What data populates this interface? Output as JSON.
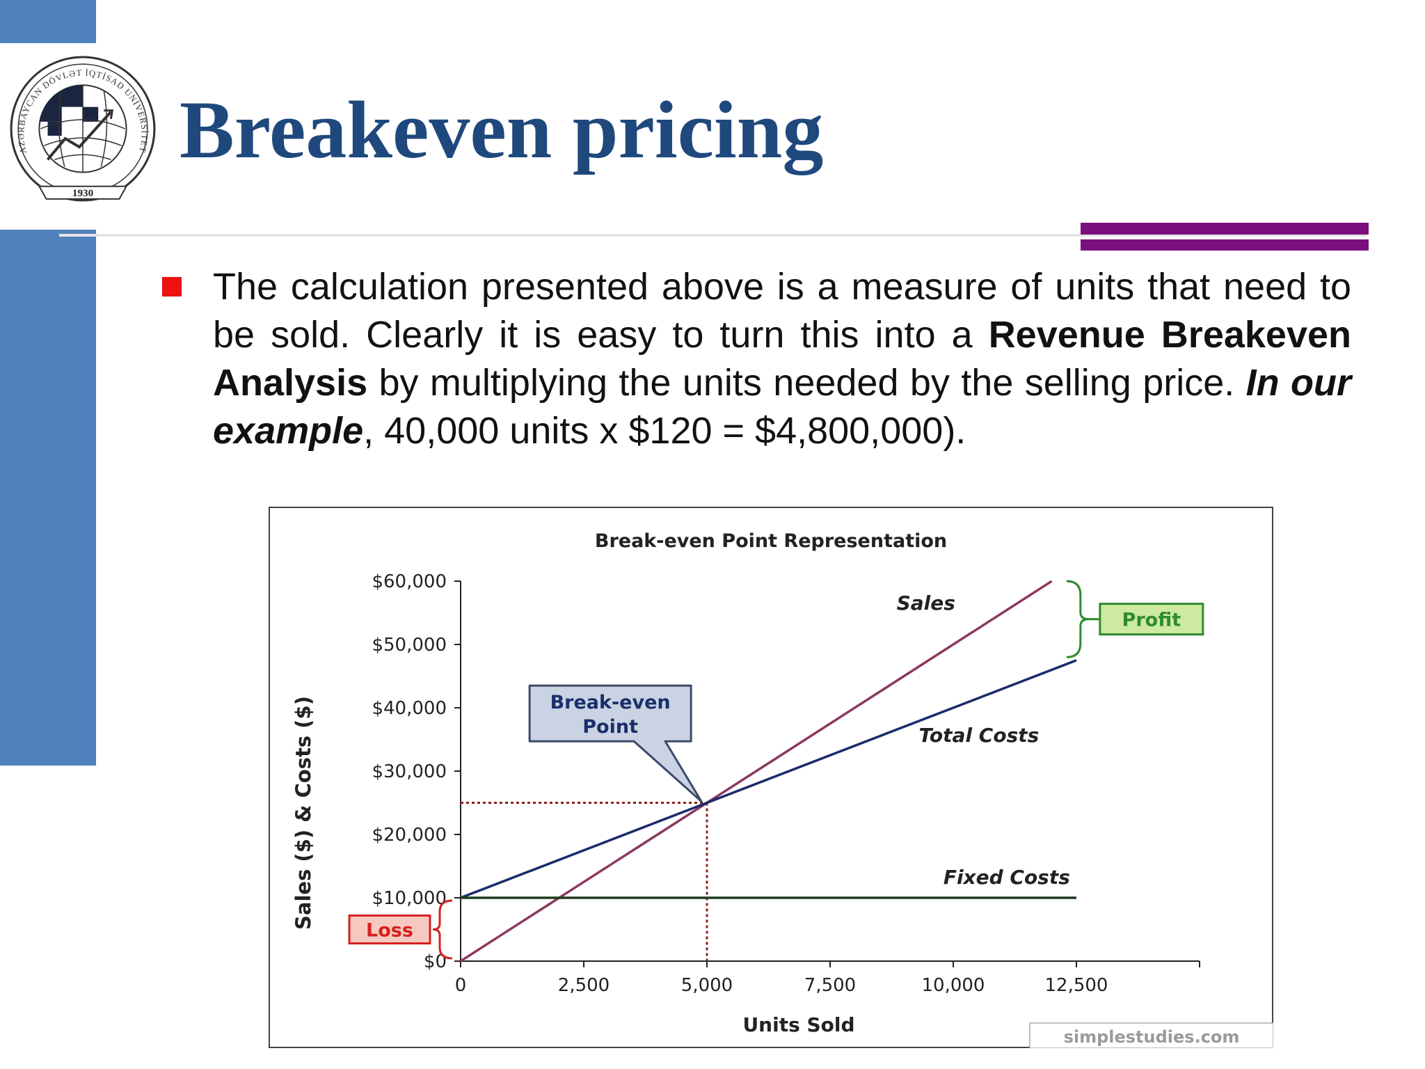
{
  "slide": {
    "title": "Breakeven pricing",
    "logo": {
      "year": "1930",
      "ring_text": "AZƏRBAYCAN DÖVLƏT İQTİSAD UNİVERSİTETİ"
    },
    "bullet_segments": [
      {
        "text": "The calculation presented above is a measure of units that need to be sold. Clearly it is easy to turn this into a ",
        "style": "normal"
      },
      {
        "text": "Revenue Breakeven Analysis",
        "style": "bold"
      },
      {
        "text": " by multiplying the units needed by the selling price. ",
        "style": "normal"
      },
      {
        "text": "In our example",
        "style": "bold-italic"
      },
      {
        "text": ", 40,000 units x $120 = $4,800,000).",
        "style": "normal"
      }
    ]
  },
  "chart_data": {
    "type": "line",
    "title": "Break-even Point Representation",
    "xlabel": "Units Sold",
    "ylabel": "Sales ($) & Costs ($)",
    "xlim": [
      0,
      15000
    ],
    "ylim": [
      0,
      60000
    ],
    "x_ticks": [
      0,
      2500,
      5000,
      7500,
      10000,
      12500
    ],
    "x_tick_labels": [
      "0",
      "2,500",
      "5,000",
      "7,500",
      "10,000",
      "12,500"
    ],
    "y_ticks": [
      0,
      10000,
      20000,
      30000,
      40000,
      50000,
      60000
    ],
    "y_tick_labels": [
      "$0",
      "$10,000",
      "$20,000",
      "$30,000",
      "$40,000",
      "$50,000",
      "$60,000"
    ],
    "series": [
      {
        "name": "Sales",
        "color": "#8b3a62",
        "x": [
          0,
          12000
        ],
        "y": [
          0,
          60000
        ]
      },
      {
        "name": "Total Costs",
        "color": "#1a2a6c",
        "x": [
          0,
          12500
        ],
        "y": [
          10000,
          47500
        ]
      },
      {
        "name": "Fixed Costs",
        "color": "#1e3d1e",
        "x": [
          0,
          12500
        ],
        "y": [
          10000,
          10000
        ]
      }
    ],
    "break_even": {
      "x": 5000,
      "y": 25000,
      "label": "Break-even Point"
    },
    "annotations": {
      "profit_label": "Profit",
      "loss_label": "Loss",
      "profit_color": "#2e8b2e",
      "loss_color": "#d62020"
    },
    "source": "simplestudies.com",
    "grid": false
  }
}
